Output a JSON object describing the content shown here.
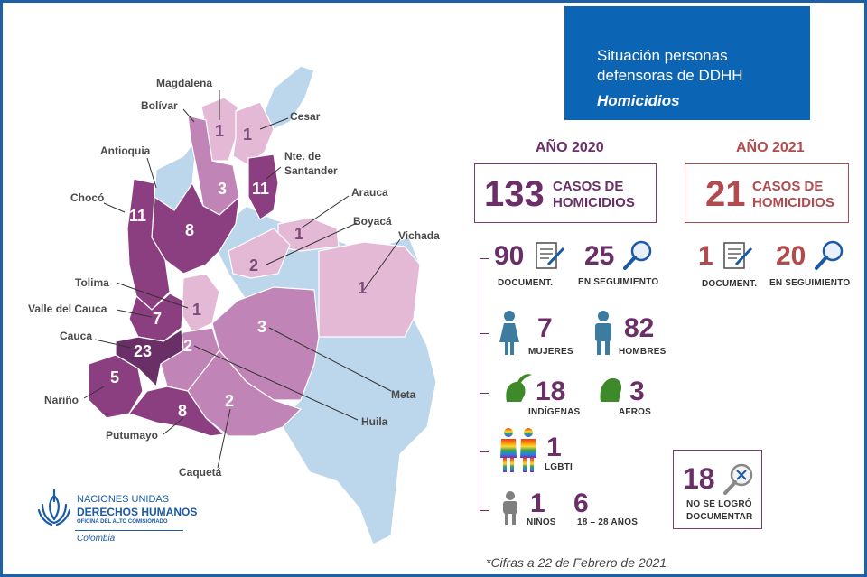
{
  "title": {
    "line1": "Situación personas",
    "line2": "defensoras de DDHH",
    "line3": "Homicidios"
  },
  "colors": {
    "frame": "#1f5fa3",
    "title_bg": "#0b64b4",
    "dark_purple": "#6a2f66",
    "mid_purple": "#8c3f80",
    "light_purple": "#c085b6",
    "pale_pink": "#e4b9d6",
    "light_blue": "#bcd6ec",
    "accent_red": "#b24b4e"
  },
  "year2020": {
    "label": "AÑO 2020",
    "total": "133",
    "total_label_1": "CASOS DE",
    "total_label_2": "HOMICIDIOS",
    "documentados": "90",
    "documentados_label": "DOCUMENT.",
    "seguimiento": "25",
    "seguimiento_label": "EN SEGUIMIENTO",
    "mujeres": "7",
    "mujeres_label": "MUJERES",
    "hombres": "82",
    "hombres_label": "HOMBRES",
    "indigenas": "18",
    "indigenas_label": "INDÍGENAS",
    "afros": "3",
    "afros_label": "AFROS",
    "lgbti": "1",
    "lgbti_label": "LGBTI",
    "ninos": "1",
    "ninos_label": "NIÑOS",
    "jovenes": "6",
    "jovenes_label": "18 – 28 AÑOS",
    "no_documentado": "18",
    "no_documentado_label_1": "NO SE LOGRÓ",
    "no_documentado_label_2": "DOCUMENTAR"
  },
  "year2021": {
    "label": "AÑO 2021",
    "total": "21",
    "total_label_1": "CASOS DE",
    "total_label_2": "HOMICIDIOS",
    "documentados": "1",
    "documentados_label": "DOCUMENT.",
    "seguimiento": "20",
    "seguimiento_label": "EN SEGUIMIENTO"
  },
  "departments": [
    {
      "name": "Magdalena",
      "value": "1"
    },
    {
      "name": "Bolívar",
      "value": "3"
    },
    {
      "name": "Cesar",
      "value": "1"
    },
    {
      "name": "Antioquia",
      "value": "8"
    },
    {
      "name": "Nte. de Santander",
      "value": "11"
    },
    {
      "name": "Chocó",
      "value": "11"
    },
    {
      "name": "Arauca",
      "value": "1"
    },
    {
      "name": "Boyacá",
      "value": "2"
    },
    {
      "name": "Vichada",
      "value": "1"
    },
    {
      "name": "Tolima",
      "value": "1"
    },
    {
      "name": "Valle del Cauca",
      "value": "7"
    },
    {
      "name": "Cauca",
      "value": "23"
    },
    {
      "name": "Nariño",
      "value": "5"
    },
    {
      "name": "Putumayo",
      "value": "8"
    },
    {
      "name": "Caquetá",
      "value": "2"
    },
    {
      "name": "Meta",
      "value": "3"
    },
    {
      "name": "Huila",
      "value": "2"
    }
  ],
  "logo": {
    "line1": "NACIONES UNIDAS",
    "line2": "DERECHOS HUMANOS",
    "line3": "OFICINA DEL ALTO COMISIONADO",
    "line4": "Colombia"
  },
  "footnote": "*Cifras a 22 de Febrero de 2021"
}
